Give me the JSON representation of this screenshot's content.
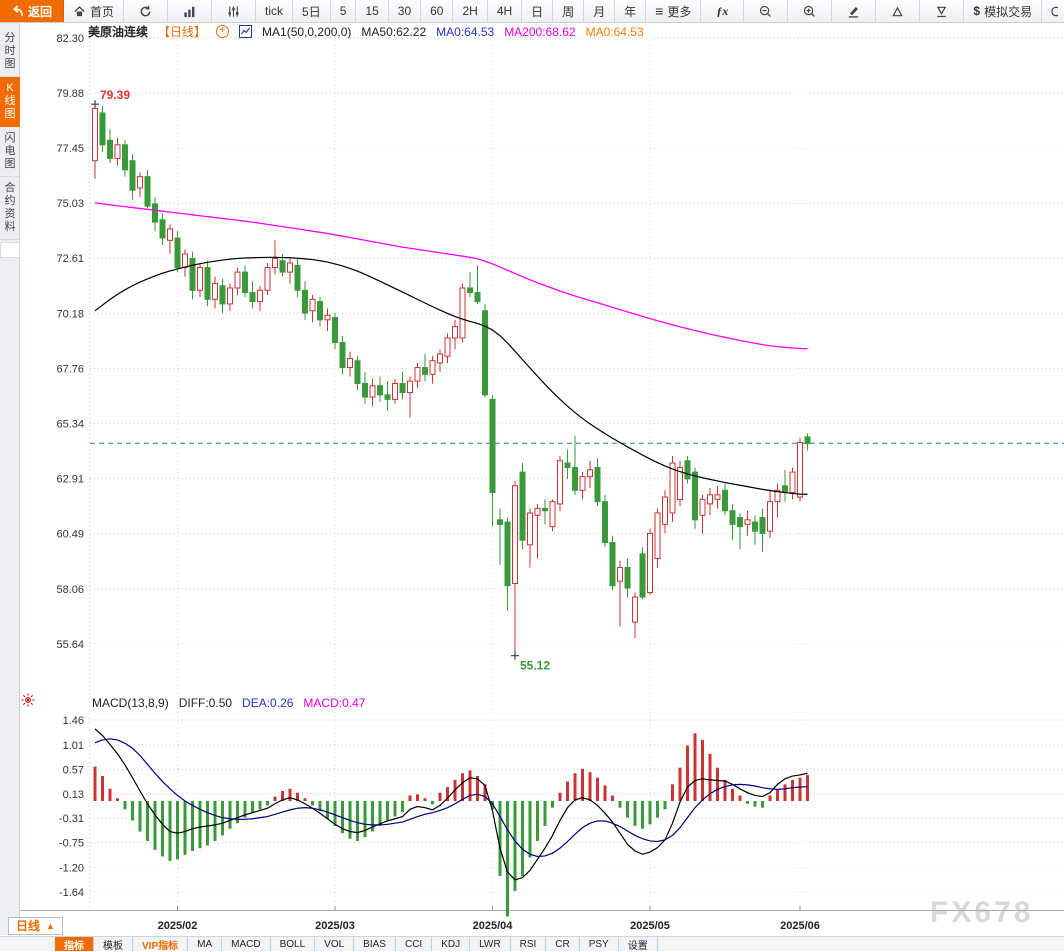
{
  "toolbar": {
    "items": [
      {
        "name": "back-button",
        "icon": "back-arrow",
        "label": "返回",
        "primary": true
      },
      {
        "name": "home-button",
        "icon": "home",
        "label": "首页"
      },
      {
        "name": "refresh-button",
        "icon": "refresh",
        "label": ""
      },
      {
        "name": "chart-stats-button",
        "icon": "bar-chart",
        "label": ""
      },
      {
        "name": "indicator-sliders-button",
        "icon": "sliders",
        "label": ""
      },
      {
        "name": "period-tick-button",
        "label": "tick"
      },
      {
        "name": "period-5d-button",
        "label": "5日"
      },
      {
        "name": "period-5-button",
        "label": "5"
      },
      {
        "name": "period-15-button",
        "label": "15"
      },
      {
        "name": "period-30-button",
        "label": "30"
      },
      {
        "name": "period-60-button",
        "label": "60"
      },
      {
        "name": "period-2h-button",
        "label": "2H"
      },
      {
        "name": "period-4h-button",
        "label": "4H"
      },
      {
        "name": "period-day-button",
        "label": "日"
      },
      {
        "name": "period-week-button",
        "label": "周"
      },
      {
        "name": "period-month-button",
        "label": "月"
      },
      {
        "name": "period-year-button",
        "label": "年"
      },
      {
        "name": "more-button",
        "icon": "menu",
        "label": "更多"
      },
      {
        "name": "formula-button",
        "icon": "fx",
        "label": ""
      },
      {
        "name": "zoom-out-button",
        "icon": "zoom-out",
        "label": ""
      },
      {
        "name": "zoom-in-button",
        "icon": "zoom-in",
        "label": ""
      },
      {
        "name": "draw-pencil-button",
        "icon": "pencil",
        "label": ""
      },
      {
        "name": "triangle-up-button",
        "icon": "triangle-up",
        "label": ""
      },
      {
        "name": "triangle-down-button",
        "icon": "triangle-down",
        "label": ""
      },
      {
        "name": "sim-trade-button",
        "icon": "dollar",
        "label": "模拟交易"
      },
      {
        "name": "toolbar-partial-button",
        "icon": "partial-circle",
        "label": ""
      }
    ]
  },
  "icons": {
    "menu": "≡",
    "fx": "ƒx",
    "dollar": "$",
    "plus_circle": "+"
  },
  "sidebar": {
    "items": [
      {
        "name": "sidebar-item-time-chart",
        "label": "分时图",
        "active": false
      },
      {
        "name": "sidebar-item-kline-chart",
        "label": "K线图",
        "active": true
      },
      {
        "name": "sidebar-item-flash-chart",
        "label": "闪电图",
        "active": false
      },
      {
        "name": "sidebar-item-contract-info",
        "label": "合约资料",
        "active": false
      }
    ]
  },
  "header": {
    "symbol": "美原油连续",
    "period": "【日线】",
    "ma_def": "MA1(50,0,200,0)",
    "ma50": "MA50:62.22",
    "ma0_blue": "MA0:64.53",
    "ma200": "MA200:68.62",
    "ma0_orange": "MA0:64.53"
  },
  "macd_header": {
    "title": "MACD(13,8,9)",
    "diff": "DIFF:0.50",
    "dea": "DEA:0.26",
    "macd": "MACD:0.47"
  },
  "bottom": {
    "period_label": "日线",
    "period_arrow": "▲",
    "tabs": [
      {
        "name": "tab-indicator",
        "label": "指标",
        "active": true
      },
      {
        "name": "tab-template",
        "label": "模板"
      },
      {
        "name": "tab-vip-indicator",
        "label": "VIP指标",
        "vip": true
      },
      {
        "name": "tab-ma",
        "label": "MA"
      },
      {
        "name": "tab-macd",
        "label": "MACD"
      },
      {
        "name": "tab-boll",
        "label": "BOLL"
      },
      {
        "name": "tab-vol",
        "label": "VOL"
      },
      {
        "name": "tab-bias",
        "label": "BIAS"
      },
      {
        "name": "tab-cci",
        "label": "CCI"
      },
      {
        "name": "tab-kdj",
        "label": "KDJ"
      },
      {
        "name": "tab-lwr",
        "label": "LWR"
      },
      {
        "name": "tab-rsi",
        "label": "RSI"
      },
      {
        "name": "tab-cr",
        "label": "CR"
      },
      {
        "name": "tab-psy",
        "label": "PSY"
      },
      {
        "name": "tab-settings",
        "label": "设置"
      }
    ]
  },
  "watermark": "FX678",
  "chart_data": {
    "type": "candlestick",
    "symbol": "美原油连续",
    "period": "日线",
    "price_axis_labels": [
      "82.30",
      "79.88",
      "77.45",
      "75.03",
      "72.61",
      "70.18",
      "67.76",
      "65.34",
      "62.91",
      "60.49",
      "58.06",
      "55.64"
    ],
    "macd_axis_labels": [
      "1.46",
      "1.01",
      "0.57",
      "0.13",
      "-0.31",
      "-0.75",
      "-1.20",
      "-1.64"
    ],
    "x_axis": [
      {
        "label": "2025/02",
        "i": 11
      },
      {
        "label": "2025/03",
        "i": 32
      },
      {
        "label": "2025/04",
        "i": 53
      },
      {
        "label": "2025/05",
        "i": 74
      },
      {
        "label": "2025/06",
        "i": 94
      }
    ],
    "high_marker": {
      "label": "79.39",
      "index": 0,
      "value": 79.39
    },
    "low_marker": {
      "label": "55.12",
      "index": 56,
      "value": 55.12
    },
    "last_price_line": 64.47,
    "colors": {
      "up": "#cc3333",
      "down": "#3a993a",
      "ma50": "#000000",
      "ma200": "#ff00ff",
      "diff": "#000000",
      "dea": "#00007f",
      "last_line": "#1b7fd0",
      "grid": "#cccccc",
      "accent": "#f06c00",
      "watermark": "#d7d7dc"
    },
    "candles": [
      [
        76.9,
        79.39,
        76.1,
        79.2
      ],
      [
        79.0,
        79.3,
        77.3,
        77.6
      ],
      [
        77.8,
        78.3,
        76.8,
        77.0
      ],
      [
        77.0,
        77.9,
        76.7,
        77.6
      ],
      [
        77.6,
        77.8,
        76.2,
        76.5
      ],
      [
        76.9,
        77.2,
        75.2,
        75.6
      ],
      [
        75.7,
        76.4,
        75.3,
        76.2
      ],
      [
        76.2,
        76.5,
        74.8,
        74.9
      ],
      [
        75.0,
        75.3,
        73.8,
        74.2
      ],
      [
        74.3,
        74.6,
        73.2,
        73.5
      ],
      [
        73.4,
        74.1,
        72.8,
        73.9
      ],
      [
        73.5,
        73.8,
        72.0,
        72.2
      ],
      [
        72.2,
        73.0,
        71.8,
        72.8
      ],
      [
        72.6,
        72.9,
        70.8,
        71.2
      ],
      [
        71.2,
        72.4,
        70.9,
        72.2
      ],
      [
        72.2,
        72.5,
        70.5,
        70.8
      ],
      [
        70.8,
        71.8,
        70.4,
        71.5
      ],
      [
        71.4,
        71.7,
        70.2,
        70.6
      ],
      [
        70.6,
        71.5,
        70.3,
        71.3
      ],
      [
        71.3,
        72.2,
        71.0,
        72.0
      ],
      [
        72.0,
        72.3,
        70.9,
        71.1
      ],
      [
        71.1,
        71.6,
        70.4,
        70.7
      ],
      [
        70.7,
        71.4,
        70.3,
        71.2
      ],
      [
        71.2,
        72.4,
        71.0,
        72.2
      ],
      [
        72.2,
        73.4,
        71.9,
        72.6
      ],
      [
        72.5,
        72.8,
        71.8,
        72.0
      ],
      [
        72.0,
        72.6,
        71.5,
        72.4
      ],
      [
        72.3,
        72.6,
        70.9,
        71.2
      ],
      [
        71.2,
        71.6,
        69.9,
        70.2
      ],
      [
        70.3,
        71.0,
        69.8,
        70.8
      ],
      [
        70.7,
        70.9,
        69.6,
        69.9
      ],
      [
        69.9,
        70.4,
        69.4,
        70.1
      ],
      [
        70.0,
        70.2,
        68.6,
        68.9
      ],
      [
        68.9,
        69.2,
        67.5,
        67.8
      ],
      [
        67.8,
        68.5,
        67.4,
        68.2
      ],
      [
        68.1,
        68.3,
        66.8,
        67.1
      ],
      [
        67.1,
        67.6,
        66.2,
        66.5
      ],
      [
        66.5,
        67.3,
        66.1,
        67.0
      ],
      [
        67.0,
        67.4,
        66.3,
        66.6
      ],
      [
        66.6,
        67.2,
        65.9,
        66.4
      ],
      [
        66.4,
        67.3,
        66.2,
        67.1
      ],
      [
        67.1,
        67.6,
        66.4,
        66.7
      ],
      [
        66.7,
        67.4,
        65.6,
        67.2
      ],
      [
        67.2,
        68.0,
        66.9,
        67.8
      ],
      [
        67.8,
        68.4,
        67.2,
        67.5
      ],
      [
        67.5,
        68.3,
        67.1,
        68.1
      ],
      [
        68.0,
        68.6,
        67.6,
        68.4
      ],
      [
        68.3,
        69.3,
        68.0,
        69.1
      ],
      [
        69.1,
        69.9,
        68.6,
        69.6
      ],
      [
        69.1,
        71.5,
        68.9,
        71.3
      ],
      [
        71.3,
        72.0,
        70.9,
        71.1
      ],
      [
        71.1,
        72.3,
        70.6,
        70.7
      ],
      [
        70.3,
        70.6,
        66.5,
        66.6
      ],
      [
        66.4,
        66.6,
        60.8,
        62.3
      ],
      [
        61.1,
        61.6,
        59.1,
        60.9
      ],
      [
        61.0,
        61.2,
        57.1,
        58.2
      ],
      [
        58.3,
        62.8,
        55.12,
        62.6
      ],
      [
        63.2,
        63.6,
        59.8,
        60.2
      ],
      [
        60.0,
        61.6,
        59.0,
        61.4
      ],
      [
        61.3,
        61.8,
        59.4,
        61.6
      ],
      [
        61.6,
        62.0,
        60.9,
        61.5
      ],
      [
        60.8,
        62.0,
        60.6,
        61.9
      ],
      [
        61.8,
        63.9,
        61.5,
        63.7
      ],
      [
        63.6,
        64.2,
        62.9,
        63.4
      ],
      [
        63.4,
        64.8,
        62.2,
        62.4
      ],
      [
        62.4,
        63.2,
        62.0,
        63.0
      ],
      [
        63.0,
        63.7,
        62.5,
        63.3
      ],
      [
        63.4,
        63.8,
        61.7,
        61.9
      ],
      [
        61.9,
        62.2,
        59.9,
        60.1
      ],
      [
        60.1,
        60.4,
        58.0,
        58.2
      ],
      [
        58.4,
        59.3,
        56.4,
        59.0
      ],
      [
        59.0,
        59.4,
        57.7,
        58.1
      ],
      [
        56.6,
        57.9,
        55.9,
        57.7
      ],
      [
        59.6,
        59.9,
        57.6,
        57.7
      ],
      [
        57.9,
        60.7,
        57.8,
        60.5
      ],
      [
        59.4,
        61.6,
        59.0,
        61.4
      ],
      [
        60.9,
        62.4,
        60.5,
        62.1
      ],
      [
        61.4,
        63.9,
        61.0,
        63.6
      ],
      [
        62.0,
        63.7,
        61.7,
        63.4
      ],
      [
        63.7,
        63.9,
        62.7,
        62.9
      ],
      [
        63.2,
        63.4,
        60.7,
        61.1
      ],
      [
        61.3,
        62.2,
        60.5,
        62.0
      ],
      [
        61.8,
        62.5,
        61.3,
        62.2
      ],
      [
        62.0,
        62.6,
        61.6,
        62.2
      ],
      [
        62.4,
        62.7,
        61.3,
        61.5
      ],
      [
        61.5,
        61.8,
        60.2,
        60.9
      ],
      [
        61.2,
        61.4,
        59.8,
        60.8
      ],
      [
        60.9,
        61.5,
        60.4,
        61.1
      ],
      [
        61.0,
        61.3,
        60.0,
        60.6
      ],
      [
        61.2,
        61.6,
        59.7,
        60.5
      ],
      [
        60.6,
        62.4,
        60.3,
        61.9
      ],
      [
        61.9,
        62.7,
        61.2,
        62.4
      ],
      [
        62.6,
        63.3,
        61.9,
        62.3
      ],
      [
        62.3,
        63.4,
        62.0,
        63.2
      ],
      [
        62.1,
        64.7,
        61.9,
        64.5
      ],
      [
        64.75,
        64.9,
        64.15,
        64.45
      ]
    ],
    "ma50": [
      70.3,
      70.55,
      70.8,
      71.02,
      71.22,
      71.4,
      71.56,
      71.7,
      71.83,
      71.95,
      72.05,
      72.14,
      72.22,
      72.3,
      72.37,
      72.43,
      72.48,
      72.53,
      72.57,
      72.6,
      72.62,
      72.63,
      72.64,
      72.65,
      72.65,
      72.64,
      72.63,
      72.61,
      72.58,
      72.55,
      72.5,
      72.44,
      72.36,
      72.27,
      72.16,
      72.04,
      71.9,
      71.75,
      71.6,
      71.44,
      71.28,
      71.12,
      70.96,
      70.8,
      70.64,
      70.48,
      70.33,
      70.18,
      70.05,
      69.93,
      69.83,
      69.74,
      69.62,
      69.45,
      69.2,
      68.88,
      68.52,
      68.15,
      67.78,
      67.42,
      67.06,
      66.72,
      66.4,
      66.1,
      65.82,
      65.56,
      65.32,
      65.1,
      64.89,
      64.69,
      64.5,
      64.31,
      64.13,
      63.95,
      63.78,
      63.62,
      63.47,
      63.34,
      63.22,
      63.12,
      63.03,
      62.95,
      62.88,
      62.81,
      62.74,
      62.68,
      62.62,
      62.56,
      62.5,
      62.44,
      62.39,
      62.34,
      62.3,
      62.26,
      62.23,
      62.22
    ],
    "ma200": [
      75.05,
      75.0,
      74.96,
      74.92,
      74.88,
      74.84,
      74.8,
      74.76,
      74.72,
      74.68,
      74.64,
      74.6,
      74.56,
      74.52,
      74.48,
      74.44,
      74.4,
      74.36,
      74.32,
      74.28,
      74.24,
      74.2,
      74.15,
      74.1,
      74.05,
      74.0,
      73.95,
      73.9,
      73.85,
      73.8,
      73.75,
      73.7,
      73.64,
      73.58,
      73.52,
      73.46,
      73.4,
      73.34,
      73.28,
      73.22,
      73.16,
      73.1,
      73.05,
      73.0,
      72.95,
      72.9,
      72.85,
      72.8,
      72.75,
      72.7,
      72.65,
      72.58,
      72.48,
      72.36,
      72.22,
      72.08,
      71.94,
      71.8,
      71.66,
      71.53,
      71.41,
      71.29,
      71.17,
      71.06,
      70.95,
      70.85,
      70.75,
      70.65,
      70.55,
      70.45,
      70.35,
      70.25,
      70.15,
      70.05,
      69.95,
      69.86,
      69.77,
      69.68,
      69.59,
      69.51,
      69.43,
      69.35,
      69.27,
      69.2,
      69.13,
      69.06,
      68.99,
      68.93,
      68.87,
      68.81,
      68.76,
      68.72,
      68.69,
      68.66,
      68.64,
      68.62
    ],
    "macd": {
      "hist": [
        0.62,
        0.45,
        0.22,
        0.05,
        -0.15,
        -0.35,
        -0.55,
        -0.72,
        -0.88,
        -1.0,
        -1.08,
        -1.05,
        -0.97,
        -0.9,
        -0.85,
        -0.8,
        -0.72,
        -0.62,
        -0.5,
        -0.4,
        -0.3,
        -0.22,
        -0.15,
        -0.08,
        0.08,
        0.18,
        0.22,
        0.15,
        0.05,
        -0.08,
        -0.18,
        -0.32,
        -0.45,
        -0.58,
        -0.68,
        -0.72,
        -0.65,
        -0.55,
        -0.45,
        -0.35,
        -0.28,
        -0.2,
        0.1,
        0.12,
        0.05,
        -0.06,
        0.15,
        0.25,
        0.38,
        0.5,
        0.55,
        0.45,
        0.3,
        -0.15,
        -1.35,
        -2.08,
        -1.62,
        -1.35,
        -1.02,
        -0.72,
        -0.45,
        -0.12,
        0.15,
        0.35,
        0.5,
        0.58,
        0.52,
        0.42,
        0.28,
        0.1,
        -0.12,
        -0.3,
        -0.45,
        -0.5,
        -0.42,
        -0.3,
        -0.15,
        0.3,
        0.6,
        1.0,
        1.22,
        1.1,
        0.85,
        0.6,
        0.38,
        0.22,
        0.1,
        -0.05,
        -0.1,
        -0.12,
        0.1,
        0.2,
        0.3,
        0.38,
        0.42,
        0.47
      ],
      "diff": [
        1.3,
        1.18,
        1.02,
        0.85,
        0.65,
        0.42,
        0.18,
        -0.05,
        -0.25,
        -0.42,
        -0.55,
        -0.58,
        -0.55,
        -0.5,
        -0.47,
        -0.45,
        -0.43,
        -0.4,
        -0.35,
        -0.3,
        -0.25,
        -0.21,
        -0.17,
        -0.13,
        -0.05,
        0.02,
        0.06,
        0.02,
        -0.05,
        -0.13,
        -0.22,
        -0.32,
        -0.42,
        -0.5,
        -0.55,
        -0.57,
        -0.53,
        -0.47,
        -0.41,
        -0.36,
        -0.32,
        -0.28,
        -0.15,
        -0.1,
        -0.12,
        -0.16,
        -0.08,
        0.05,
        0.2,
        0.33,
        0.42,
        0.4,
        0.28,
        -0.18,
        -0.85,
        -1.28,
        -1.42,
        -1.38,
        -1.25,
        -1.05,
        -0.85,
        -0.62,
        -0.35,
        -0.12,
        0.02,
        0.06,
        0.02,
        -0.08,
        -0.22,
        -0.38,
        -0.58,
        -0.78,
        -0.9,
        -0.96,
        -0.92,
        -0.84,
        -0.7,
        -0.4,
        -0.02,
        0.25,
        0.37,
        0.4,
        0.38,
        0.37,
        0.36,
        0.3,
        0.22,
        0.15,
        0.1,
        0.08,
        0.15,
        0.3,
        0.4,
        0.45,
        0.47,
        0.5
      ],
      "dea": [
        1.05,
        1.1,
        1.12,
        1.1,
        1.04,
        0.95,
        0.82,
        0.66,
        0.5,
        0.35,
        0.22,
        0.1,
        0.0,
        -0.08,
        -0.15,
        -0.21,
        -0.26,
        -0.3,
        -0.32,
        -0.33,
        -0.33,
        -0.32,
        -0.3,
        -0.28,
        -0.24,
        -0.2,
        -0.16,
        -0.13,
        -0.12,
        -0.13,
        -0.16,
        -0.2,
        -0.25,
        -0.3,
        -0.35,
        -0.39,
        -0.42,
        -0.43,
        -0.43,
        -0.42,
        -0.4,
        -0.38,
        -0.33,
        -0.28,
        -0.24,
        -0.21,
        -0.17,
        -0.12,
        -0.05,
        0.03,
        0.1,
        0.12,
        0.08,
        -0.05,
        -0.28,
        -0.52,
        -0.72,
        -0.87,
        -0.96,
        -1.0,
        -0.99,
        -0.94,
        -0.85,
        -0.73,
        -0.6,
        -0.48,
        -0.4,
        -0.36,
        -0.36,
        -0.4,
        -0.46,
        -0.54,
        -0.62,
        -0.68,
        -0.72,
        -0.73,
        -0.7,
        -0.62,
        -0.48,
        -0.3,
        -0.12,
        0.02,
        0.13,
        0.21,
        0.26,
        0.29,
        0.3,
        0.29,
        0.27,
        0.24,
        0.22,
        0.21,
        0.22,
        0.24,
        0.25,
        0.26
      ]
    }
  }
}
